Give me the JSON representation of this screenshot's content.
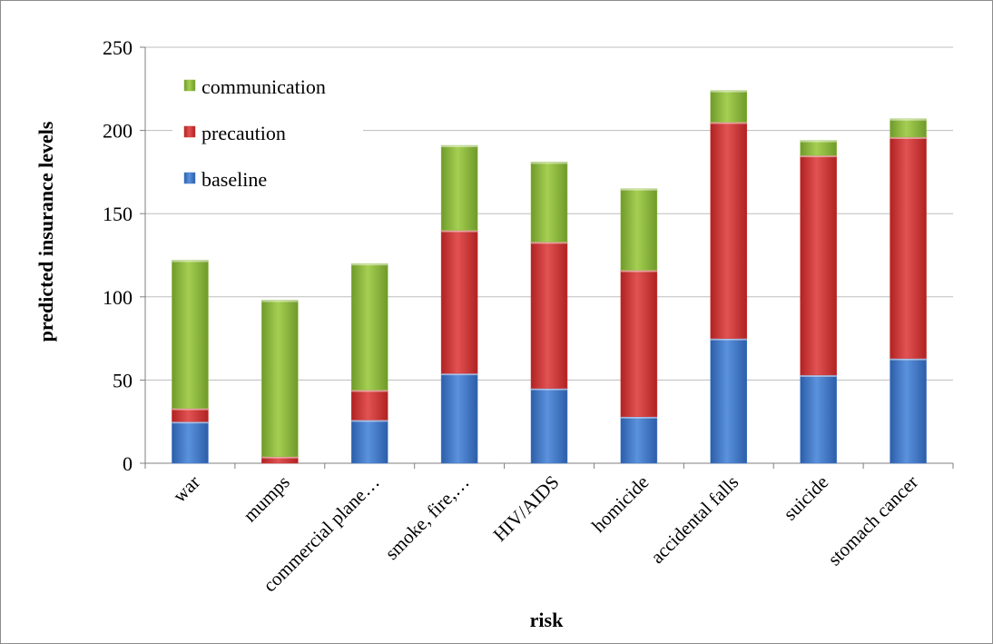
{
  "chart_data": {
    "type": "bar",
    "stacked": true,
    "xlabel": "risk",
    "ylabel": "predicted insurance levels",
    "ylim": [
      0,
      250
    ],
    "yticks": [
      0,
      50,
      100,
      150,
      200,
      250
    ],
    "grid": true,
    "legend_position": "top-left",
    "categories": [
      "war",
      "mumps",
      "commercial plane…",
      "smoke, fire,…",
      "HIV/AIDS",
      "homicide",
      "accidental falls",
      "suicide",
      "stomach cancer"
    ],
    "series": [
      {
        "name": "baseline",
        "color": "#4a7fcf",
        "values": [
          25,
          0,
          26,
          54,
          45,
          28,
          75,
          53,
          63
        ]
      },
      {
        "name": "precaution",
        "color": "#cf3a3a",
        "values": [
          8,
          4,
          18,
          86,
          88,
          88,
          130,
          132,
          133
        ]
      },
      {
        "name": "communication",
        "color": "#8fbc3f",
        "values": [
          89,
          94,
          76,
          51,
          48,
          49,
          19,
          9,
          11
        ]
      }
    ],
    "legend_order": [
      "communication",
      "precaution",
      "baseline"
    ]
  }
}
